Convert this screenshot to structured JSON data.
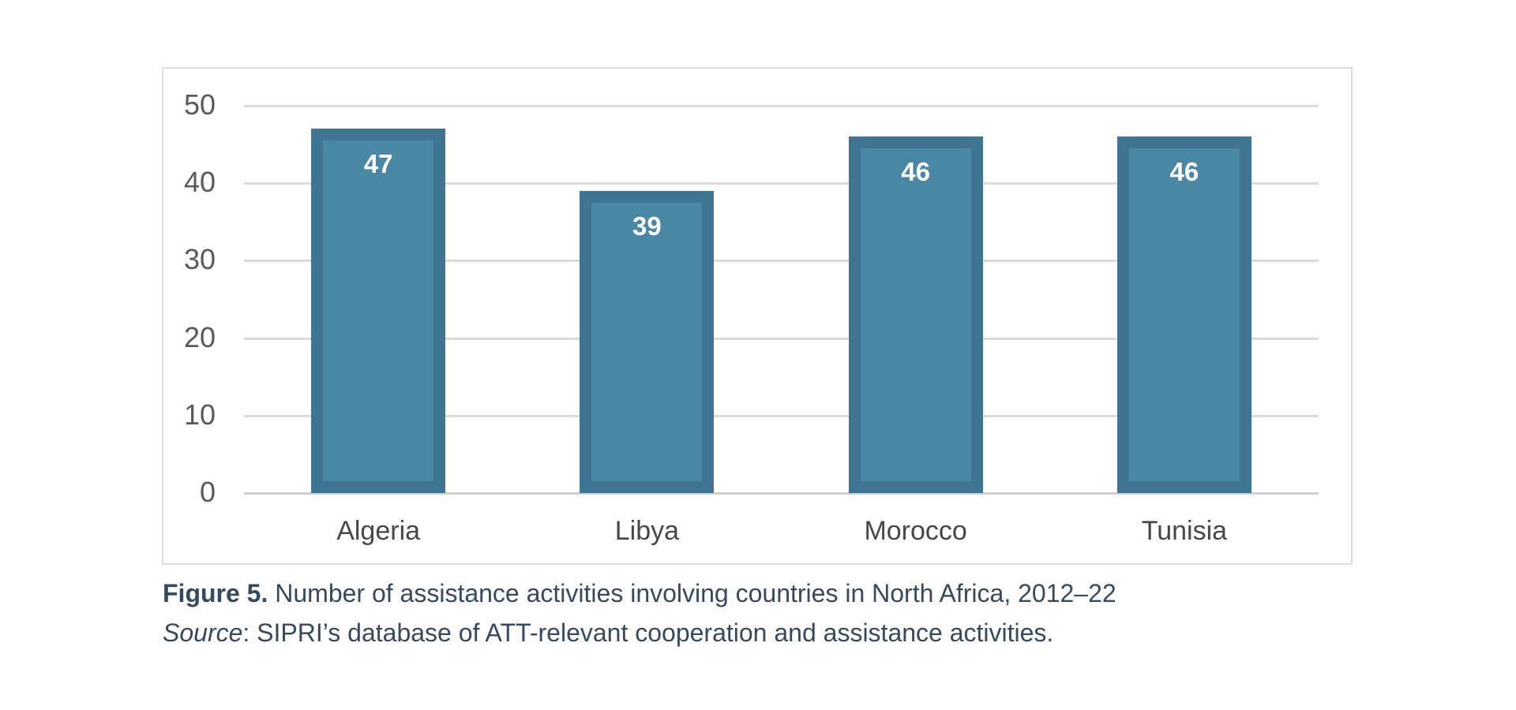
{
  "chart_data": {
    "type": "bar",
    "categories": [
      "Algeria",
      "Libya",
      "Morocco",
      "Tunisia"
    ],
    "values": [
      47,
      39,
      46,
      46
    ],
    "data_labels": [
      "47",
      "39",
      "46",
      "46"
    ],
    "y_ticks": [
      "0",
      "10",
      "20",
      "30",
      "40",
      "50"
    ],
    "y_tick_values": [
      0,
      10,
      20,
      30,
      40,
      50
    ],
    "ylim": [
      0,
      50
    ],
    "grid": true,
    "legend": false,
    "title": "",
    "xlabel": "",
    "ylabel": "",
    "colors": {
      "bar_fill": "#4A87A4",
      "bar_border": "#3F7590",
      "data_label": "#FFFFFF",
      "gridline": "#DBDBDB",
      "baseline": "#D0D0D0",
      "tick_label": "#595959",
      "category_label": "#474747",
      "frame_border": "#DCDCDC"
    }
  },
  "caption": {
    "figure_label": "Figure 5.",
    "figure_text": "Number of assistance activities involving countries in North Africa, 2012–22",
    "source_label": "Source",
    "source_text": ": SIPRI’s database of ATT-relevant cooperation and assistance activities."
  }
}
